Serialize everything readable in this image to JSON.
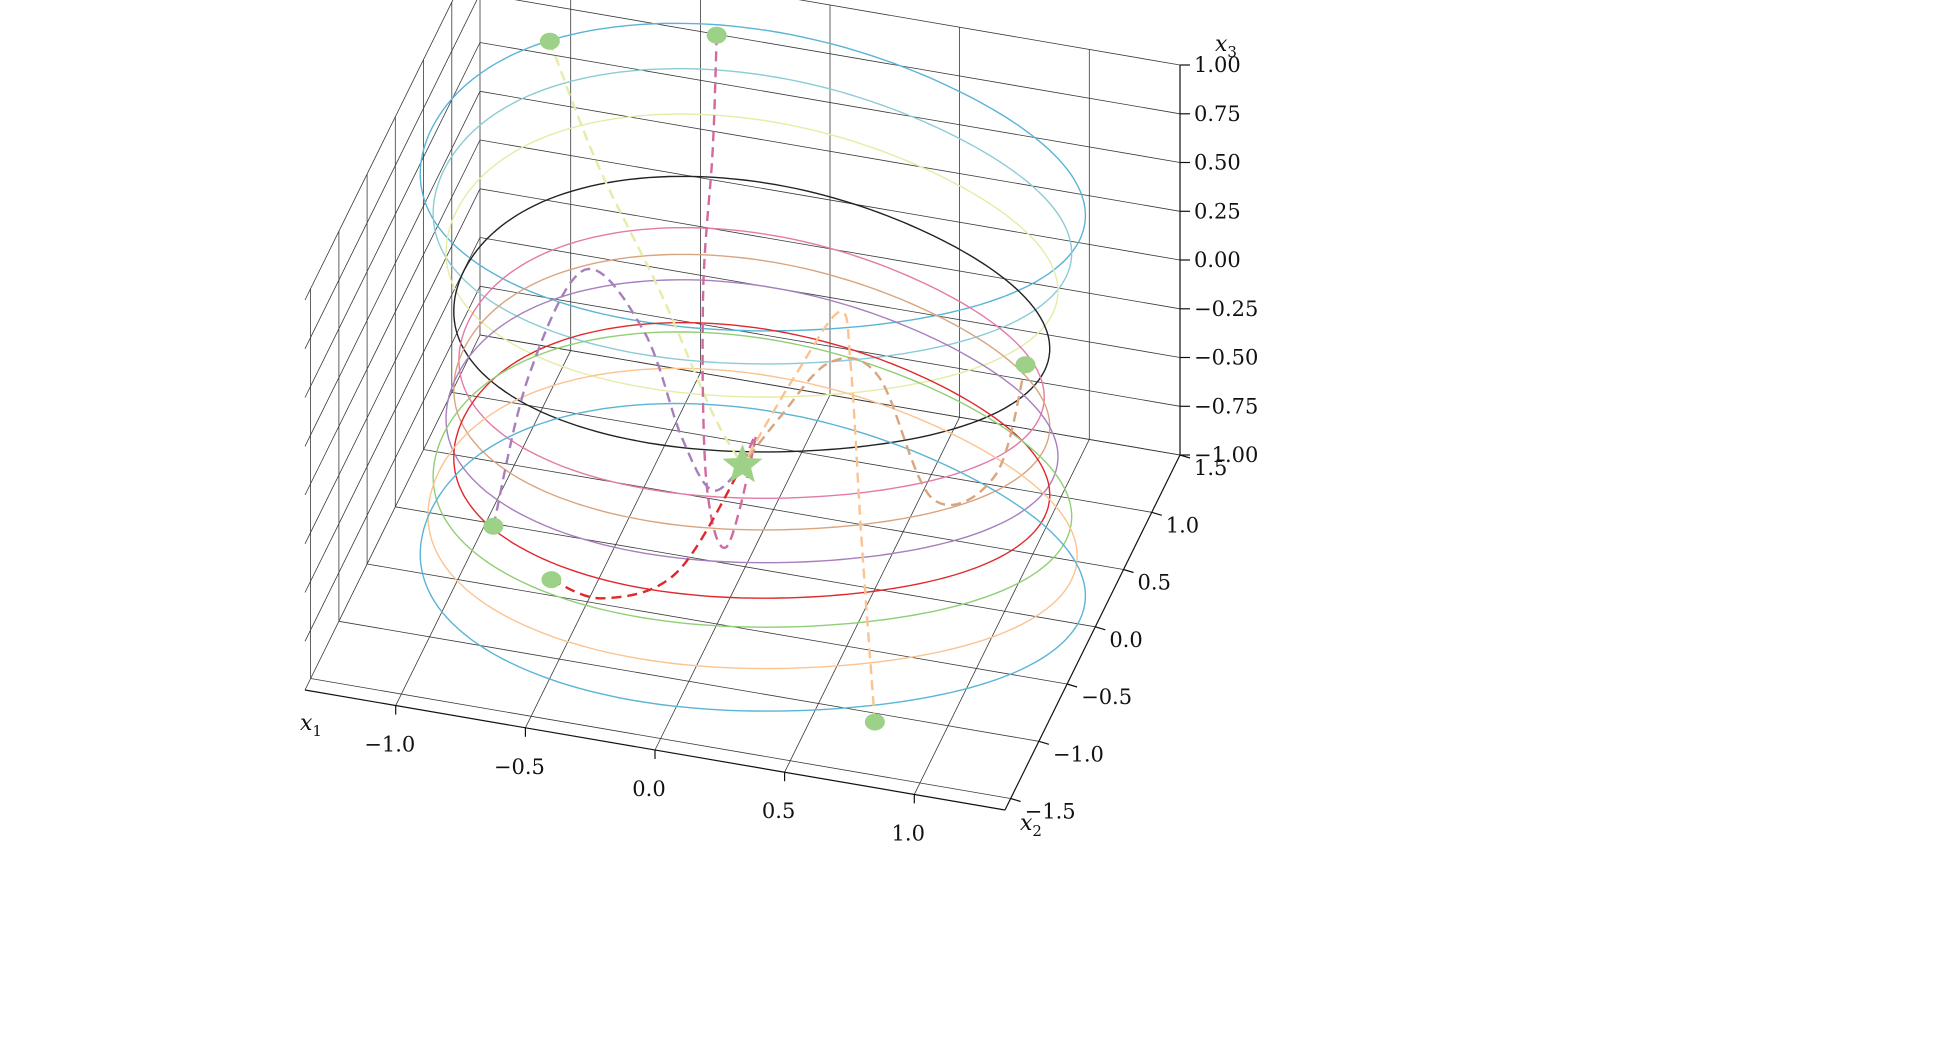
{
  "chart_data": {
    "type": "line3d",
    "title": "",
    "axes": {
      "x1": {
        "label": "x",
        "subscript": "1",
        "lim": [
          -1.35,
          1.35
        ],
        "ticks": [
          -1.0,
          -0.5,
          0.0,
          0.5,
          1.0
        ],
        "tick_labels": [
          "−1.0",
          "−0.5",
          "0.0",
          "0.5",
          "1.0"
        ]
      },
      "x2": {
        "label": "x",
        "subscript": "2",
        "lim": [
          -1.6,
          1.5
        ],
        "ticks": [
          -1.5,
          -1.0,
          -0.5,
          0.0,
          0.5,
          1.0,
          1.5
        ],
        "tick_labels": [
          "−1.5",
          "−1.0",
          "−0.5",
          "0.0",
          "0.5",
          "1.0",
          "1.5"
        ]
      },
      "x3": {
        "label": "x",
        "subscript": "3",
        "lim": [
          -1.0,
          1.0
        ],
        "ticks": [
          -1.0,
          -0.75,
          -0.5,
          -0.25,
          0.0,
          0.25,
          0.5,
          0.75,
          1.0
        ],
        "tick_labels": [
          "−1.00",
          "−0.75",
          "−0.50",
          "−0.25",
          "0.00",
          "0.25",
          "0.50",
          "0.75",
          "1.00"
        ]
      }
    },
    "grid": true,
    "view": {
      "elev": 30,
      "azim": -70
    },
    "level_curves": [
      {
        "x3": 1.0,
        "radius": 1.25,
        "color": "#5ab4d6"
      },
      {
        "x3": 0.8,
        "radius": 1.2,
        "color": "#8ccbd8"
      },
      {
        "x3": 0.6,
        "radius": 1.15,
        "color": "#e5eca6"
      },
      {
        "x3": 0.3,
        "radius": 1.12,
        "color": "#222222"
      },
      {
        "x3": 0.05,
        "radius": 1.1,
        "color": "#e47aa8"
      },
      {
        "x3": -0.1,
        "radius": 1.12,
        "color": "#d9a57e"
      },
      {
        "x3": -0.25,
        "radius": 1.15,
        "color": "#a77fbd"
      },
      {
        "x3": -0.45,
        "radius": 1.12,
        "color": "#e0272c"
      },
      {
        "x3": -0.55,
        "radius": 1.2,
        "color": "#8fcf75"
      },
      {
        "x3": -0.75,
        "radius": 1.22,
        "color": "#fbc390"
      },
      {
        "x3": -0.95,
        "radius": 1.25,
        "color": "#5ab4d6"
      }
    ],
    "trajectories": [
      {
        "color": "#e5eca6",
        "points": [
          [
            -0.95,
            0.9,
            0.95
          ],
          [
            -0.7,
            0.6,
            0.55
          ],
          [
            -0.4,
            0.35,
            0.1
          ],
          [
            -0.15,
            0.1,
            -0.3
          ],
          [
            0.0,
            -0.05,
            -0.45
          ]
        ]
      },
      {
        "color": "#d16a9f",
        "points": [
          [
            -0.35,
            1.1,
            1.0
          ],
          [
            -0.3,
            0.8,
            0.6
          ],
          [
            -0.25,
            0.4,
            0.1
          ],
          [
            -0.15,
            0.0,
            -0.6
          ],
          [
            -0.05,
            -0.1,
            -0.85
          ],
          [
            0.05,
            -0.05,
            -0.3
          ],
          [
            0.0,
            -0.05,
            -0.45
          ]
        ]
      },
      {
        "color": "#a77fbd",
        "points": [
          [
            -0.95,
            -0.1,
            -0.95
          ],
          [
            -0.9,
            0.3,
            -0.4
          ],
          [
            -0.75,
            0.6,
            0.0
          ],
          [
            -0.5,
            0.5,
            -0.2
          ],
          [
            -0.3,
            0.25,
            -0.55
          ],
          [
            -0.15,
            0.1,
            -0.7
          ],
          [
            0.0,
            -0.05,
            -0.45
          ]
        ]
      },
      {
        "color": "#e0272c",
        "points": [
          [
            -0.65,
            -0.45,
            -0.95
          ],
          [
            -0.45,
            -0.45,
            -1.0
          ],
          [
            -0.2,
            -0.3,
            -0.9
          ],
          [
            0.0,
            -0.05,
            -0.45
          ]
        ]
      },
      {
        "color": "#d9a57e",
        "points": [
          [
            0.95,
            0.6,
            -0.1
          ],
          [
            0.9,
            0.3,
            -0.5
          ],
          [
            0.7,
            0.1,
            -0.55
          ],
          [
            0.45,
            0.3,
            -0.1
          ],
          [
            0.25,
            0.35,
            -0.1
          ],
          [
            0.1,
            0.15,
            -0.3
          ],
          [
            0.0,
            -0.05,
            -0.45
          ]
        ]
      },
      {
        "color": "#fbc390",
        "points": [
          [
            0.75,
            -1.15,
            -0.95
          ],
          [
            0.6,
            -0.7,
            -0.3
          ],
          [
            0.45,
            -0.2,
            0.25
          ],
          [
            0.3,
            0.3,
            0.2
          ],
          [
            0.15,
            0.2,
            -0.1
          ],
          [
            0.0,
            -0.05,
            -0.45
          ]
        ]
      }
    ],
    "start_points": [
      [
        -0.95,
        0.9,
        0.95
      ],
      [
        -0.35,
        1.1,
        1.0
      ],
      [
        0.95,
        0.6,
        -0.1
      ],
      [
        -0.95,
        -0.1,
        -0.95
      ],
      [
        -0.65,
        -0.45,
        -0.95
      ],
      [
        0.75,
        -1.15,
        -0.95
      ]
    ],
    "equilibrium": [
      0.0,
      -0.05,
      -0.45
    ],
    "marker_color": "#9dd187"
  }
}
